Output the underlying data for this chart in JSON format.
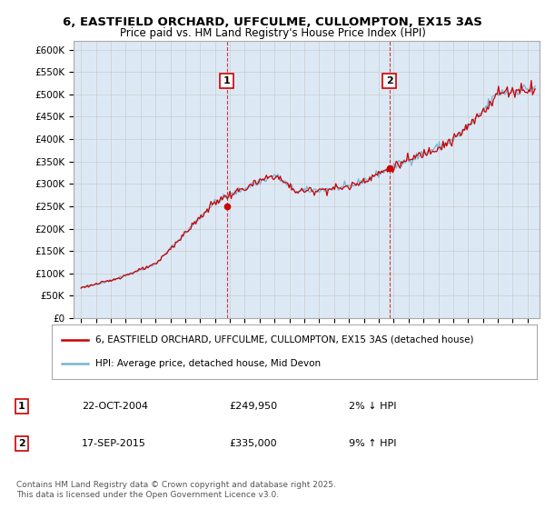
{
  "title1": "6, EASTFIELD ORCHARD, UFFCULME, CULLOMPTON, EX15 3AS",
  "title2": "Price paid vs. HM Land Registry's House Price Index (HPI)",
  "legend_label1": "6, EASTFIELD ORCHARD, UFFCULME, CULLOMPTON, EX15 3AS (detached house)",
  "legend_label2": "HPI: Average price, detached house, Mid Devon",
  "transaction1_date": "22-OCT-2004",
  "transaction1_price": "£249,950",
  "transaction1_note": "2% ↓ HPI",
  "transaction2_date": "17-SEP-2015",
  "transaction2_price": "£335,000",
  "transaction2_note": "9% ↑ HPI",
  "footer": "Contains HM Land Registry data © Crown copyright and database right 2025.\nThis data is licensed under the Open Government Licence v3.0.",
  "line1_color": "#cc0000",
  "line2_color": "#7bb3d4",
  "bg_color": "#dce9f5",
  "grid_color": "#cccccc",
  "dashed_color": "#cc0000",
  "transaction1_price_val": 249950,
  "transaction2_price_val": 335000,
  "ylim_max": 620000,
  "ylim_min": 0,
  "start_year": 1995,
  "end_year": 2025,
  "points_per_year": 12
}
